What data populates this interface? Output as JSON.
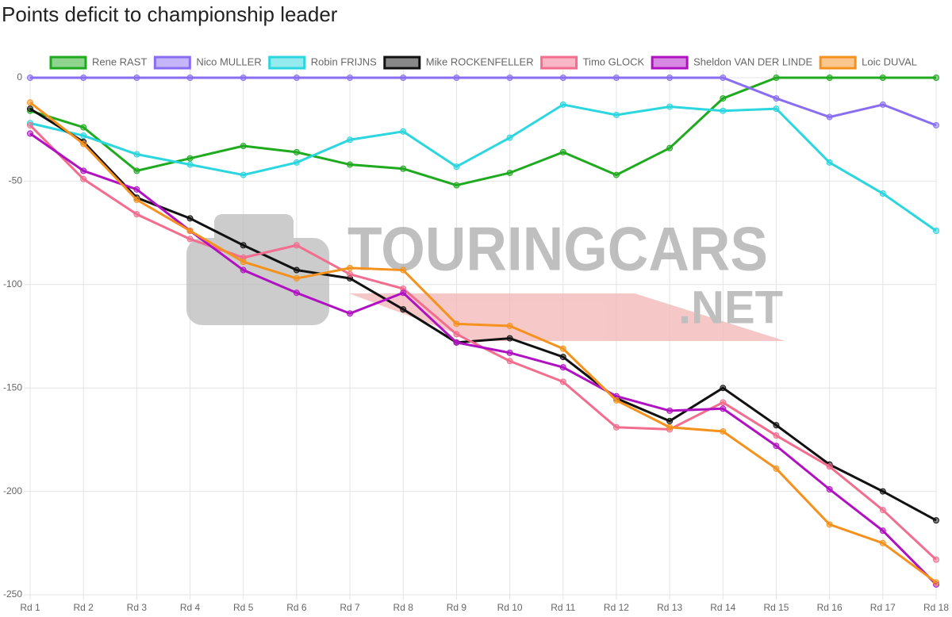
{
  "chart_data": {
    "type": "line",
    "title": "Points deficit to championship leader",
    "watermark": [
      "TOURINGCARS",
      ".NET"
    ],
    "categories": [
      "Rd 1",
      "Rd 2",
      "Rd 3",
      "Rd 4",
      "Rd 5",
      "Rd 6",
      "Rd 7",
      "Rd 8",
      "Rd 9",
      "Rd 10",
      "Rd 11",
      "Rd 12",
      "Rd 13",
      "Rd 14",
      "Rd 15",
      "Rd 16",
      "Rd 17",
      "Rd 18"
    ],
    "series": [
      {
        "name": "Rene RAST",
        "color": "#1faa1f",
        "values": [
          -16,
          -24,
          -45,
          -39,
          -33,
          -36,
          -42,
          -44,
          -52,
          -46,
          -36,
          -47,
          -34,
          -10,
          0,
          0,
          0,
          0
        ]
      },
      {
        "name": "Nico MULLER",
        "color": "#8a6ef2",
        "values": [
          0,
          0,
          0,
          0,
          0,
          0,
          0,
          0,
          0,
          0,
          0,
          0,
          0,
          0,
          -10,
          -19,
          -13,
          -23
        ]
      },
      {
        "name": "Robin FRIJNS",
        "color": "#2bd6de",
        "values": [
          -22,
          -28,
          -37,
          -42,
          -47,
          -41,
          -30,
          -26,
          -43,
          -29,
          -13,
          -18,
          -14,
          -16,
          -15,
          -41,
          -56,
          -74
        ]
      },
      {
        "name": "Mike ROCKENFELLER",
        "color": "#111111",
        "values": [
          -15,
          -31,
          -58,
          -68,
          -81,
          -93,
          -97,
          -112,
          -128,
          -126,
          -135,
          -155,
          -166,
          -150,
          -168,
          -187,
          -200,
          -214
        ]
      },
      {
        "name": "Timo GLOCK",
        "color": "#f26d8e",
        "values": [
          -23,
          -49,
          -66,
          -78,
          -87,
          -81,
          -95,
          -102,
          -124,
          -137,
          -147,
          -169,
          -170,
          -157,
          -173,
          -188,
          -209,
          -233
        ]
      },
      {
        "name": "Sheldon VAN DER LINDE",
        "color": "#b012c2",
        "values": [
          -27,
          -45,
          -54,
          -74,
          -93,
          -104,
          -114,
          -104,
          -128,
          -133,
          -140,
          -154,
          -161,
          -160,
          -178,
          -199,
          -219,
          -245
        ]
      },
      {
        "name": "Loic DUVAL",
        "color": "#f5921e",
        "values": [
          -12,
          -32,
          -59,
          -74,
          -89,
          -97,
          -92,
          -93,
          -119,
          -120,
          -131,
          -156,
          -169,
          -171,
          -189,
          -216,
          -225,
          -244
        ]
      }
    ],
    "ylim": [
      -250,
      0
    ],
    "yticks": [
      0,
      -50,
      -100,
      -150,
      -200,
      -250
    ],
    "grid": true
  }
}
